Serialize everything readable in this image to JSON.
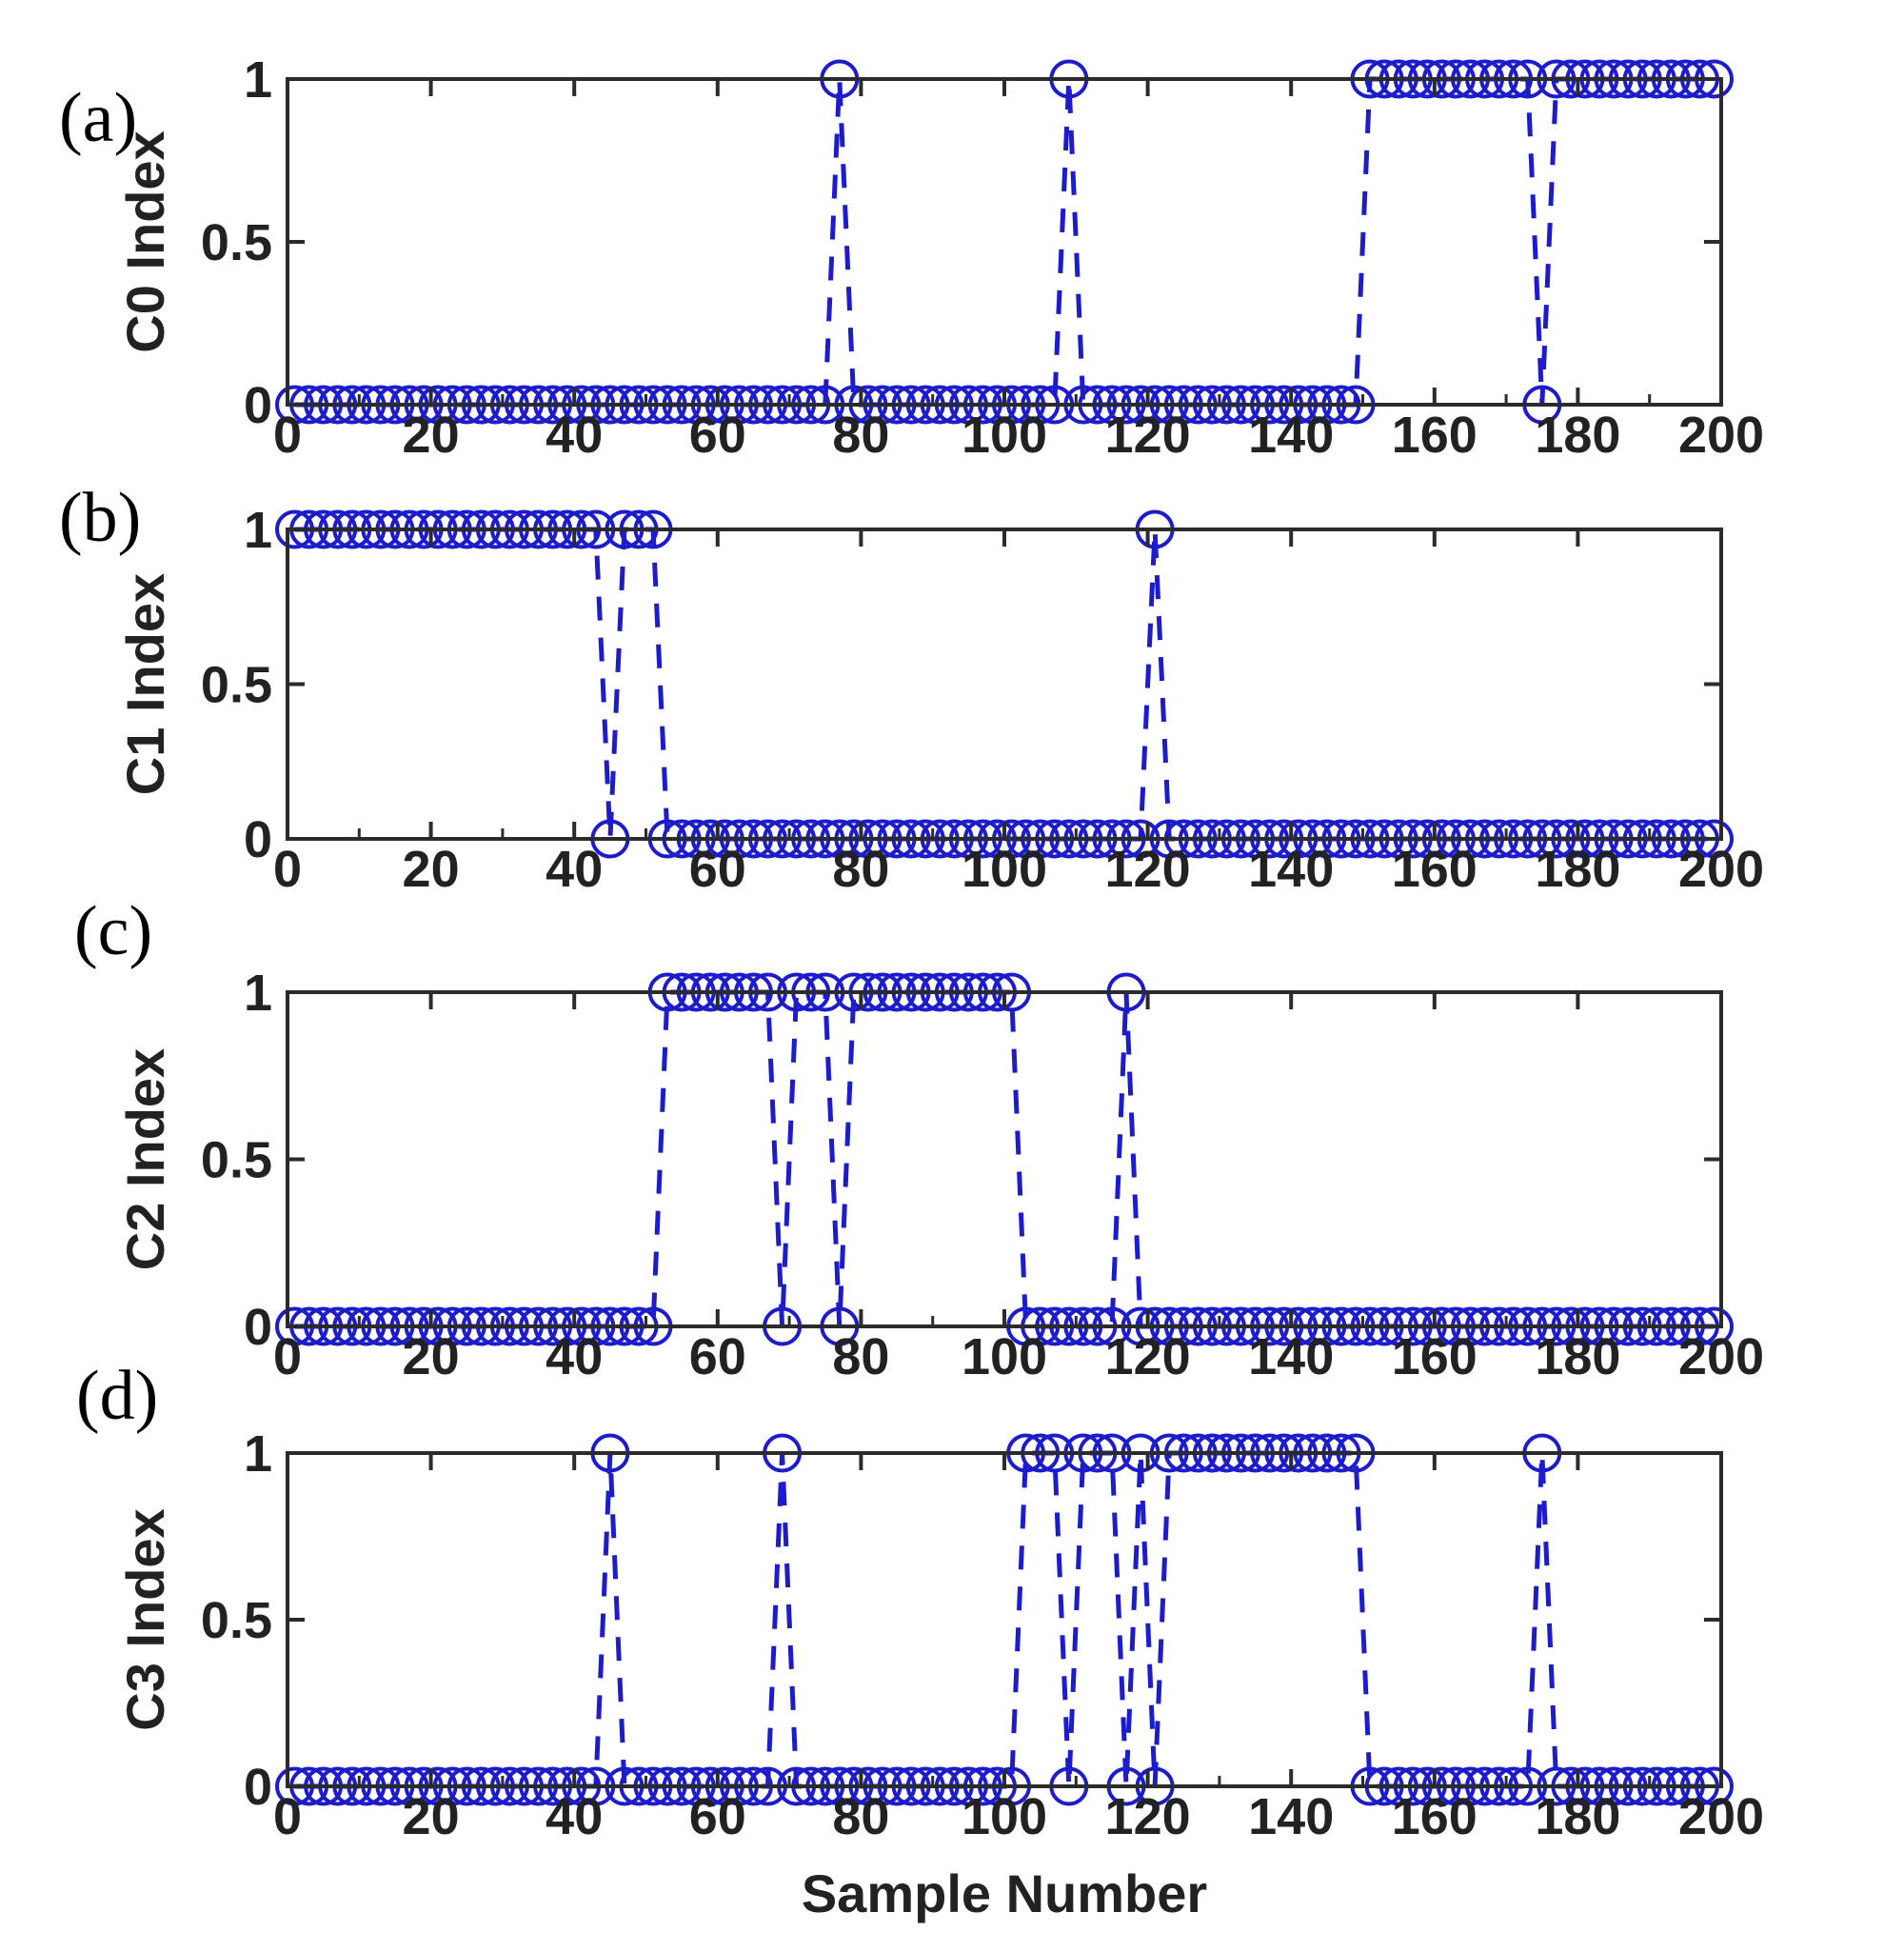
{
  "figure": {
    "title": "",
    "xlabel": "Sample  Number",
    "x_tick_labels": [
      "0",
      "20",
      "40",
      "60",
      "80",
      "100",
      "120",
      "140",
      "160",
      "180",
      "200"
    ],
    "y_tick_labels": [
      "0",
      "0.5",
      "1"
    ],
    "x_minor_tick_step": 10,
    "grid": "off",
    "legend": "none"
  },
  "style": {
    "marker_color": "#1c1ccd",
    "line_color": "#1c1ccd",
    "axis_color": "#2b2b2b",
    "text_color": "#222222",
    "panel_label_color": "#000000",
    "background": "#ffffff"
  },
  "chart_data": [
    {
      "type": "line",
      "panel_label": "(a)",
      "ylabel": "C0 Index",
      "xlabel": "",
      "marker": "open-circle",
      "line_style": "dashed",
      "xlim": [
        0,
        200
      ],
      "ylim": [
        0,
        1
      ],
      "x_ticks": [
        0,
        20,
        40,
        60,
        80,
        100,
        120,
        140,
        160,
        180,
        200
      ],
      "y_ticks": [
        0,
        0.5,
        1
      ],
      "x_start": 1,
      "x_step": 2,
      "x_end": 199,
      "value_set": [
        0,
        1
      ],
      "one_runs": [
        [
          77,
          77
        ],
        [
          109,
          109
        ],
        [
          151,
          173
        ],
        [
          177,
          199
        ]
      ]
    },
    {
      "type": "line",
      "panel_label": "(b)",
      "ylabel": "C1 Index",
      "xlabel": "",
      "marker": "open-circle",
      "line_style": "dashed",
      "xlim": [
        0,
        200
      ],
      "ylim": [
        0,
        1
      ],
      "x_ticks": [
        0,
        20,
        40,
        60,
        80,
        100,
        120,
        140,
        160,
        180,
        200
      ],
      "y_ticks": [
        0,
        0.5,
        1
      ],
      "x_start": 1,
      "x_step": 2,
      "x_end": 199,
      "value_set": [
        0,
        1
      ],
      "one_runs": [
        [
          1,
          43
        ],
        [
          47,
          51
        ],
        [
          121,
          121
        ]
      ]
    },
    {
      "type": "line",
      "panel_label": "(c)",
      "ylabel": "C2 Index",
      "xlabel": "",
      "marker": "open-circle",
      "line_style": "dashed",
      "xlim": [
        0,
        200
      ],
      "ylim": [
        0,
        1
      ],
      "x_ticks": [
        0,
        20,
        40,
        60,
        80,
        100,
        120,
        140,
        160,
        180,
        200
      ],
      "y_ticks": [
        0,
        0.5,
        1
      ],
      "x_start": 1,
      "x_step": 2,
      "x_end": 199,
      "value_set": [
        0,
        1
      ],
      "one_runs": [
        [
          53,
          67
        ],
        [
          71,
          75
        ],
        [
          79,
          101
        ],
        [
          117,
          117
        ]
      ]
    },
    {
      "type": "line",
      "panel_label": "(d)",
      "ylabel": "C3 Index",
      "xlabel": "Sample  Number",
      "marker": "open-circle",
      "line_style": "dashed",
      "xlim": [
        0,
        200
      ],
      "ylim": [
        0,
        1
      ],
      "x_ticks": [
        0,
        20,
        40,
        60,
        80,
        100,
        120,
        140,
        160,
        180,
        200
      ],
      "y_ticks": [
        0,
        0.5,
        1
      ],
      "x_start": 1,
      "x_step": 2,
      "x_end": 199,
      "value_set": [
        0,
        1
      ],
      "one_runs": [
        [
          45,
          45
        ],
        [
          69,
          69
        ],
        [
          103,
          107
        ],
        [
          111,
          115
        ],
        [
          119,
          119
        ],
        [
          123,
          149
        ],
        [
          175,
          175
        ]
      ]
    }
  ]
}
